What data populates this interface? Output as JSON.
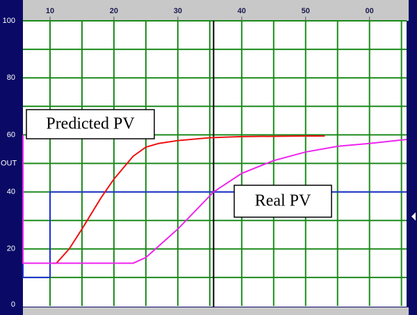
{
  "chart_data": {
    "type": "line",
    "xlim": [
      5.76,
      65.8
    ],
    "ylim": [
      0,
      100
    ],
    "xticks": [
      10,
      20,
      30,
      40,
      50,
      {
        "value": 60,
        "label": "00"
      }
    ],
    "yticks": [
      0,
      20,
      40,
      60,
      80,
      100
    ],
    "xgrid": [
      10,
      15,
      20,
      25,
      30,
      35,
      40,
      45,
      50,
      55,
      60,
      65
    ],
    "ygrid": [
      10,
      20,
      30,
      40,
      50,
      60,
      70,
      80,
      90,
      100
    ],
    "ylabel": {
      "value": 50,
      "label": "OUT"
    },
    "cursor_x": 35.6,
    "series": [
      {
        "name": "OUT",
        "color": "#1f2fd0",
        "x": [
          5.76,
          5.76,
          10,
          10,
          65.8
        ],
        "values": [
          40,
          10,
          10,
          40,
          40
        ]
      },
      {
        "name": "Predicted PV",
        "color": "#ee1111",
        "x": [
          10.4,
          11,
          13,
          15,
          18,
          20,
          23,
          25,
          27,
          30,
          35,
          40,
          50,
          53
        ],
        "values": [
          15,
          15,
          20,
          27,
          38,
          44.5,
          52.5,
          55.7,
          57,
          58,
          59,
          59.4,
          59.6,
          59.6
        ]
      },
      {
        "name": "Real PV",
        "color": "#ee22ee",
        "x": [
          5.76,
          5.76,
          23,
          25,
          30,
          35.6,
          40,
          45,
          50,
          55,
          60,
          65.8
        ],
        "values": [
          60,
          15,
          15,
          17,
          27,
          40,
          46.5,
          51,
          54,
          56,
          57,
          58.4
        ]
      }
    ],
    "annotations": [
      "Predicted PV",
      "Real PV"
    ]
  }
}
